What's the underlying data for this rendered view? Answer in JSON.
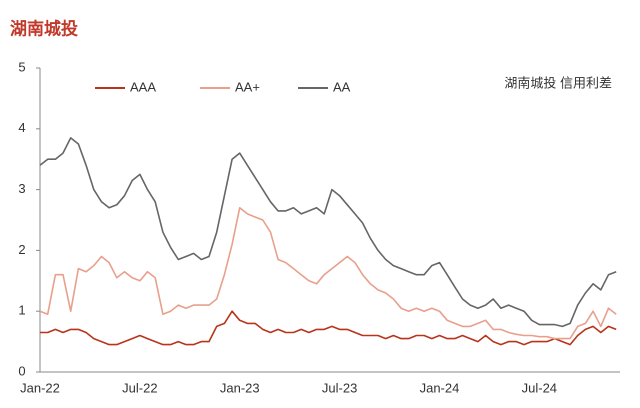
{
  "chart_data": {
    "type": "line",
    "title": "湖南城投",
    "annotation": "湖南城投 信用利差",
    "categories": [
      "Jan-22",
      null,
      null,
      null,
      null,
      null,
      null,
      null,
      null,
      null,
      null,
      null,
      null,
      "Jul-22",
      null,
      null,
      null,
      null,
      null,
      null,
      null,
      null,
      null,
      null,
      null,
      null,
      "Jan-23",
      null,
      null,
      null,
      null,
      null,
      null,
      null,
      null,
      null,
      null,
      null,
      null,
      "Jul-23",
      null,
      null,
      null,
      null,
      null,
      null,
      null,
      null,
      null,
      null,
      null,
      null,
      "Jan-24",
      null,
      null,
      null,
      null,
      null,
      null,
      null,
      null,
      null,
      null,
      null,
      null,
      "Jul-24",
      null,
      null,
      null,
      null,
      null,
      null,
      null,
      null,
      null,
      null
    ],
    "series": [
      {
        "name": "AAA",
        "color": "#b8341b",
        "values": [
          0.65,
          0.65,
          0.7,
          0.65,
          0.7,
          0.7,
          0.65,
          0.55,
          0.5,
          0.45,
          0.45,
          0.5,
          0.55,
          0.6,
          0.55,
          0.5,
          0.45,
          0.45,
          0.5,
          0.45,
          0.45,
          0.5,
          0.5,
          0.75,
          0.8,
          1.0,
          0.85,
          0.8,
          0.8,
          0.7,
          0.65,
          0.7,
          0.65,
          0.65,
          0.7,
          0.65,
          0.7,
          0.7,
          0.75,
          0.7,
          0.7,
          0.65,
          0.6,
          0.6,
          0.6,
          0.55,
          0.6,
          0.55,
          0.55,
          0.6,
          0.6,
          0.55,
          0.6,
          0.55,
          0.55,
          0.6,
          0.55,
          0.5,
          0.6,
          0.5,
          0.45,
          0.5,
          0.5,
          0.45,
          0.5,
          0.5,
          0.5,
          0.55,
          0.5,
          0.45,
          0.6,
          0.7,
          0.75,
          0.65,
          0.75,
          0.7
        ]
      },
      {
        "name": "AA+",
        "color": "#e8a08c",
        "values": [
          1.0,
          0.95,
          1.6,
          1.6,
          1.0,
          1.7,
          1.65,
          1.75,
          1.9,
          1.8,
          1.55,
          1.65,
          1.55,
          1.5,
          1.65,
          1.55,
          0.95,
          1.0,
          1.1,
          1.05,
          1.1,
          1.1,
          1.1,
          1.2,
          1.6,
          2.1,
          2.7,
          2.6,
          2.55,
          2.5,
          2.3,
          1.85,
          1.8,
          1.7,
          1.6,
          1.5,
          1.45,
          1.6,
          1.7,
          1.8,
          1.9,
          1.8,
          1.6,
          1.45,
          1.35,
          1.3,
          1.2,
          1.05,
          1.0,
          1.05,
          1.0,
          1.05,
          1.0,
          0.85,
          0.8,
          0.75,
          0.75,
          0.8,
          0.85,
          0.7,
          0.7,
          0.65,
          0.62,
          0.6,
          0.6,
          0.58,
          0.58,
          0.55,
          0.55,
          0.55,
          0.75,
          0.8,
          1.0,
          0.75,
          1.05,
          0.95
        ]
      },
      {
        "name": "AA",
        "color": "#666666",
        "values": [
          3.4,
          3.5,
          3.5,
          3.6,
          3.85,
          3.75,
          3.4,
          3.0,
          2.8,
          2.7,
          2.75,
          2.9,
          3.15,
          3.25,
          3.0,
          2.8,
          2.3,
          2.05,
          1.85,
          1.9,
          1.95,
          1.85,
          1.9,
          2.3,
          2.9,
          3.5,
          3.6,
          3.4,
          3.2,
          3.0,
          2.8,
          2.65,
          2.65,
          2.7,
          2.6,
          2.65,
          2.7,
          2.6,
          3.0,
          2.9,
          2.75,
          2.6,
          2.45,
          2.2,
          2.0,
          1.85,
          1.75,
          1.7,
          1.65,
          1.6,
          1.6,
          1.75,
          1.8,
          1.6,
          1.4,
          1.2,
          1.1,
          1.05,
          1.1,
          1.2,
          1.05,
          1.1,
          1.05,
          1.0,
          0.85,
          0.78,
          0.78,
          0.78,
          0.75,
          0.8,
          1.1,
          1.3,
          1.45,
          1.35,
          1.6,
          1.65
        ]
      }
    ],
    "ylim": [
      0,
      5
    ],
    "yticks": [
      0,
      1,
      2,
      3,
      4,
      5
    ]
  }
}
